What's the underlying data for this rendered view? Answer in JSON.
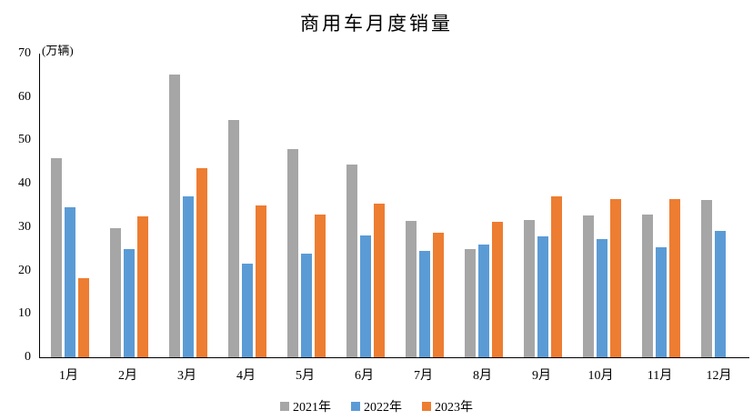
{
  "title": "商用车月度销量",
  "axis_unit_label": "(万辆)",
  "colors": {
    "series_2021": "#A6A6A6",
    "series_2022": "#5B9BD5",
    "series_2023": "#ED7D31",
    "axis_line": "#000000",
    "text": "#000000",
    "background": "#FFFFFF"
  },
  "chart_data": {
    "type": "bar",
    "title": "商用车月度销量",
    "ylabel": "(万辆)",
    "xlabel": "",
    "ylim": [
      0,
      70
    ],
    "ytick_interval": 10,
    "yticks": [
      0,
      10,
      20,
      30,
      40,
      50,
      60,
      70
    ],
    "grid": false,
    "legend_position": "bottom",
    "categories": [
      "1月",
      "2月",
      "3月",
      "4月",
      "5月",
      "6月",
      "7月",
      "8月",
      "9月",
      "10月",
      "11月",
      "12月"
    ],
    "series": [
      {
        "name": "2021年",
        "color": "#A6A6A6",
        "values": [
          45.9,
          29.8,
          65.2,
          54.8,
          48.0,
          44.5,
          31.4,
          24.9,
          31.6,
          32.6,
          32.9,
          36.3
        ]
      },
      {
        "name": "2022年",
        "color": "#5B9BD5",
        "values": [
          34.5,
          25.0,
          37.0,
          21.6,
          23.9,
          28.1,
          24.5,
          25.9,
          27.9,
          27.2,
          25.4,
          29.1
        ]
      },
      {
        "name": "2023年",
        "color": "#ED7D31",
        "values": [
          18.3,
          32.4,
          43.5,
          34.9,
          32.9,
          35.4,
          28.8,
          31.2,
          37.1,
          36.5,
          36.5,
          null
        ]
      }
    ]
  }
}
